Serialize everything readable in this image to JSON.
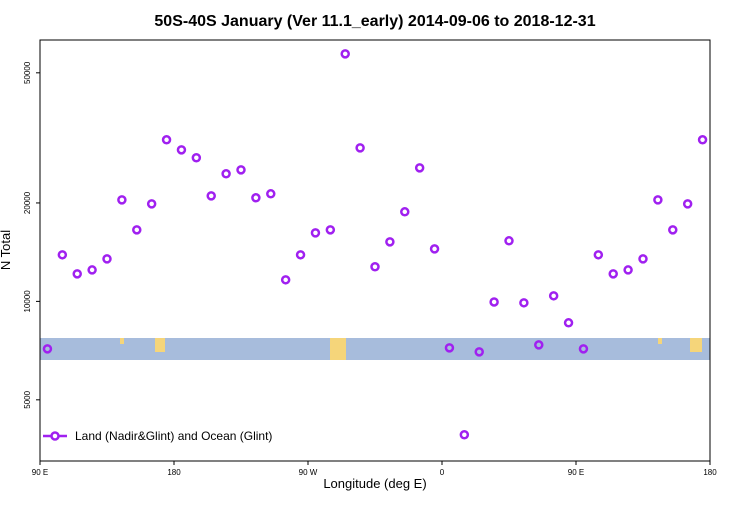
{
  "chart_data": {
    "type": "scatter",
    "title": "50S-40S January (Ver 11.1_early)   2014-09-06 to 2018-12-31",
    "x_label": "Longitude (deg E)",
    "y_label": "N Total",
    "y_log": true,
    "legend_position": "bottomleft",
    "xlim": [
      90,
      540
    ],
    "ylim": [
      3250,
      63000
    ],
    "xticks": [
      {
        "value": 90,
        "label": "90 E"
      },
      180,
      {
        "value": 270,
        "label": "90 W"
      },
      {
        "value": 360,
        "label": "0"
      },
      {
        "value": 450,
        "label": "90 E"
      },
      {
        "value": 540,
        "label": "180"
      }
    ],
    "yticks": [
      5000,
      10000,
      20000,
      50000
    ],
    "series": [
      {
        "name": "Land (Nadir&Glint) and Ocean (Glint)",
        "color": "#a020f0",
        "x": [
          95,
          105,
          115,
          125,
          135,
          145,
          155,
          165,
          175,
          185,
          195,
          205,
          215,
          225,
          235,
          245,
          255,
          265,
          275,
          285,
          295,
          305,
          315,
          325,
          335,
          345,
          355,
          365,
          375,
          385,
          395,
          405,
          415,
          425,
          435,
          445,
          455,
          465,
          475,
          485,
          495,
          505,
          515,
          525,
          535
        ],
        "values": [
          7160,
          13880,
          12140,
          12480,
          13490,
          20440,
          16550,
          19870,
          31200,
          29070,
          27490,
          21020,
          24560,
          25250,
          20740,
          21330,
          11640,
          13880,
          16200,
          16550,
          57150,
          29480,
          12760,
          15210,
          18790,
          25610,
          14470,
          7210,
          3910,
          7010,
          9960,
          15320,
          9900,
          7360,
          10400,
          8600,
          7160,
          13880,
          12140,
          12480,
          13490,
          20440,
          16550,
          19870,
          31200
        ]
      }
    ]
  }
}
